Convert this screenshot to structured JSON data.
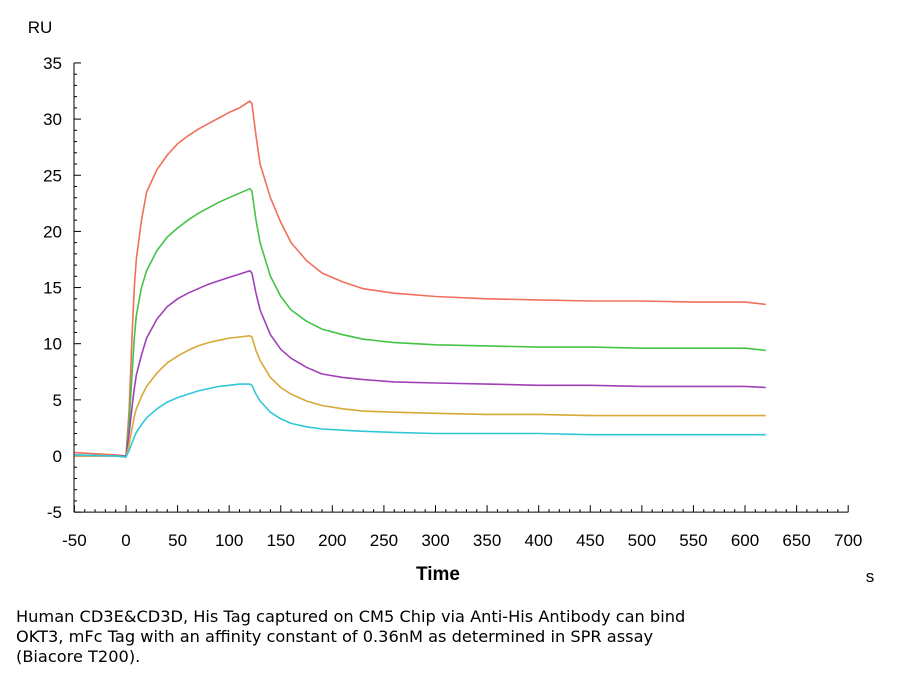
{
  "chart_data": {
    "type": "line",
    "title": "",
    "xlabel": "Time",
    "x_unit": "s",
    "ylabel": "RU",
    "xlim": [
      -50,
      700
    ],
    "ylim": [
      -5,
      35
    ],
    "x_ticks": [
      -50,
      0,
      50,
      100,
      150,
      200,
      250,
      300,
      350,
      400,
      450,
      500,
      550,
      600,
      650,
      700
    ],
    "y_ticks": [
      -5,
      0,
      5,
      10,
      15,
      20,
      25,
      30,
      35
    ],
    "grid": false,
    "legend": "none",
    "series": [
      {
        "color": "#f0705c",
        "x": [
          -50,
          -10,
          0,
          3,
          6,
          8,
          10,
          15,
          20,
          30,
          40,
          50,
          60,
          70,
          80,
          90,
          100,
          110,
          120,
          122,
          126,
          130,
          140,
          150,
          160,
          175,
          190,
          210,
          230,
          260,
          300,
          350,
          400,
          450,
          500,
          550,
          600,
          620
        ],
        "y": [
          0.3,
          0.1,
          0,
          4,
          11,
          15,
          17.5,
          21,
          23.5,
          25.5,
          26.8,
          27.8,
          28.5,
          29.1,
          29.6,
          30.1,
          30.6,
          31.0,
          31.6,
          31.4,
          28.5,
          26,
          23,
          20.8,
          19.0,
          17.4,
          16.3,
          15.5,
          14.9,
          14.5,
          14.2,
          14.0,
          13.9,
          13.8,
          13.8,
          13.7,
          13.7,
          13.5
        ]
      },
      {
        "color": "#44c444",
        "x": [
          -50,
          -10,
          0,
          3,
          6,
          8,
          10,
          15,
          20,
          30,
          40,
          50,
          60,
          70,
          80,
          90,
          100,
          110,
          120,
          122,
          126,
          130,
          140,
          150,
          160,
          175,
          190,
          210,
          230,
          260,
          300,
          350,
          400,
          450,
          500,
          550,
          600,
          620
        ],
        "y": [
          0.1,
          0,
          0,
          3,
          7.5,
          10.5,
          12.5,
          15,
          16.5,
          18.3,
          19.5,
          20.3,
          21.0,
          21.6,
          22.1,
          22.6,
          23.0,
          23.4,
          23.8,
          23.6,
          21.0,
          19,
          16,
          14.2,
          13.0,
          12.0,
          11.3,
          10.8,
          10.4,
          10.1,
          9.9,
          9.8,
          9.7,
          9.7,
          9.6,
          9.6,
          9.6,
          9.4
        ]
      },
      {
        "color": "#a040b8",
        "x": [
          -50,
          -10,
          0,
          3,
          6,
          8,
          10,
          15,
          20,
          30,
          40,
          50,
          60,
          70,
          80,
          90,
          100,
          110,
          120,
          122,
          126,
          130,
          140,
          150,
          160,
          175,
          190,
          210,
          230,
          260,
          300,
          350,
          400,
          450,
          500,
          550,
          600,
          620
        ],
        "y": [
          0,
          0,
          0,
          2,
          4.5,
          6,
          7.2,
          9,
          10.5,
          12.2,
          13.3,
          14.0,
          14.5,
          14.9,
          15.3,
          15.6,
          15.9,
          16.2,
          16.5,
          16.3,
          14.5,
          13,
          10.8,
          9.5,
          8.7,
          7.9,
          7.3,
          7.0,
          6.8,
          6.6,
          6.5,
          6.4,
          6.3,
          6.3,
          6.2,
          6.2,
          6.2,
          6.1
        ]
      },
      {
        "color": "#d8a838",
        "x": [
          -50,
          -10,
          0,
          3,
          6,
          8,
          10,
          15,
          20,
          30,
          40,
          50,
          60,
          70,
          80,
          90,
          100,
          110,
          120,
          122,
          126,
          130,
          140,
          150,
          160,
          175,
          190,
          210,
          230,
          260,
          300,
          350,
          400,
          450,
          500,
          550,
          600,
          620
        ],
        "y": [
          0,
          0,
          -0.1,
          1,
          2.5,
          3.5,
          4.2,
          5.3,
          6.2,
          7.4,
          8.3,
          8.9,
          9.4,
          9.8,
          10.1,
          10.3,
          10.5,
          10.6,
          10.7,
          10.6,
          9.4,
          8.5,
          7.0,
          6.1,
          5.5,
          4.9,
          4.5,
          4.2,
          4.0,
          3.9,
          3.8,
          3.7,
          3.7,
          3.6,
          3.6,
          3.6,
          3.6,
          3.6
        ]
      },
      {
        "color": "#30c8d8",
        "x": [
          -50,
          -10,
          0,
          3,
          6,
          8,
          10,
          15,
          20,
          30,
          40,
          50,
          60,
          70,
          80,
          90,
          100,
          110,
          120,
          122,
          126,
          130,
          140,
          150,
          160,
          175,
          190,
          210,
          230,
          260,
          300,
          350,
          400,
          450,
          500,
          550,
          600,
          620
        ],
        "y": [
          0.1,
          0,
          -0.1,
          0.5,
          1.2,
          1.7,
          2.1,
          2.8,
          3.4,
          4.2,
          4.8,
          5.2,
          5.5,
          5.8,
          6.0,
          6.2,
          6.3,
          6.4,
          6.4,
          6.3,
          5.5,
          4.9,
          3.9,
          3.3,
          2.9,
          2.6,
          2.4,
          2.3,
          2.2,
          2.1,
          2.0,
          2.0,
          2.0,
          1.9,
          1.9,
          1.9,
          1.9,
          1.9
        ]
      }
    ]
  },
  "caption": {
    "lines": [
      "Human CD3E&CD3D, His Tag captured on CM5 Chip via Anti-His Antibody can bind",
      "OKT3, mFc Tag with an affinity constant of 0.36nM as determined in SPR assay",
      "(Biacore T200)."
    ]
  }
}
